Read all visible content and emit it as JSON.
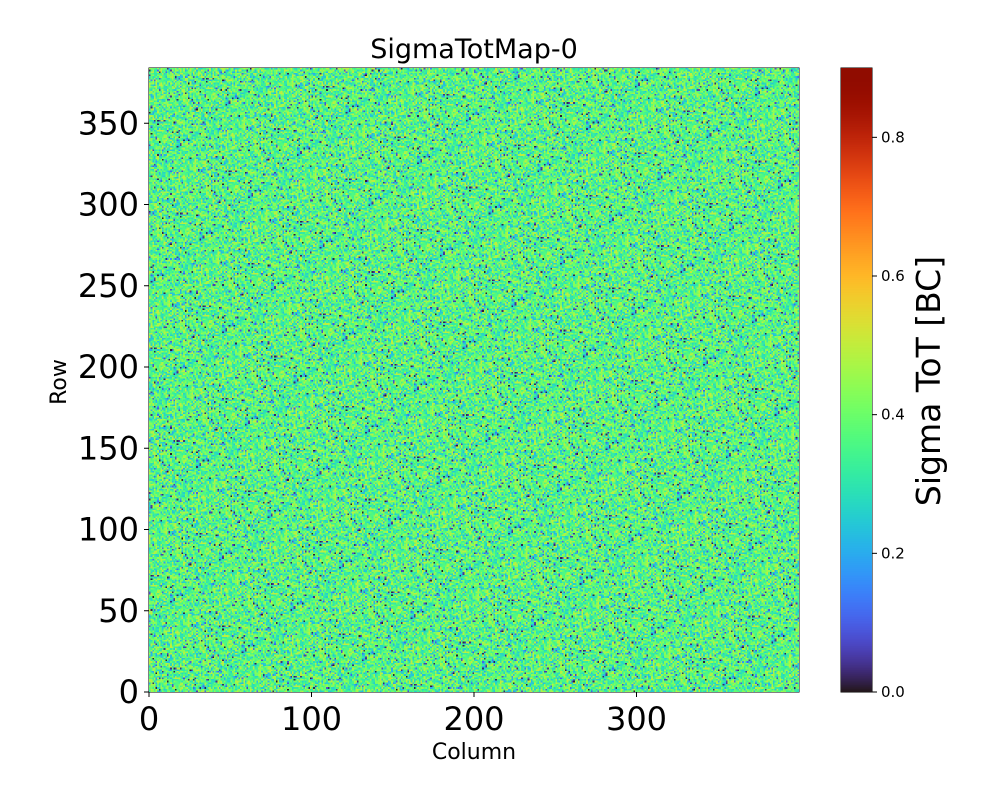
{
  "chart_data": {
    "type": "heatmap",
    "title": "SigmaTotMap-0",
    "xlabel": "Column",
    "ylabel": "Row",
    "colorbar_label": "Sigma ToT [BC]",
    "colormap": "turbo",
    "xlim": [
      0,
      400
    ],
    "ylim": [
      0,
      384
    ],
    "xticks": [
      0,
      100,
      200,
      300
    ],
    "yticks": [
      0,
      50,
      100,
      150,
      200,
      250,
      300,
      350
    ],
    "clim": [
      0,
      0.9
    ],
    "cticks": [
      "0.0",
      "0.2",
      "0.4",
      "0.6",
      "0.8"
    ],
    "grid": false,
    "distribution": {
      "description_value_range": [
        0,
        0.5
      ],
      "dominant_value": 0.37,
      "note": "per-pixel noise, values concentrated between 0.25 and 0.5"
    }
  }
}
